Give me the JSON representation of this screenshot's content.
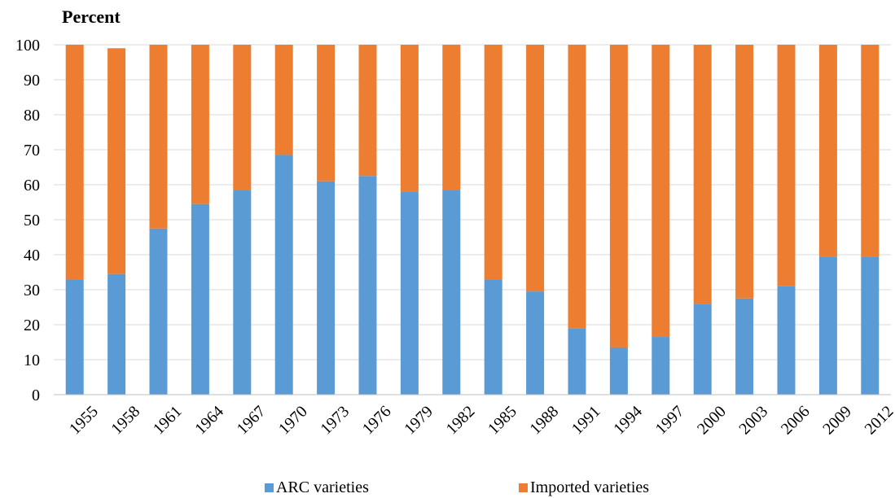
{
  "chart_data": {
    "type": "bar",
    "stacked": true,
    "ylabel": "Percent",
    "xlabel": "",
    "ylim": [
      0,
      100
    ],
    "yticks": [
      0,
      10,
      20,
      30,
      40,
      50,
      60,
      70,
      80,
      90,
      100
    ],
    "grid": true,
    "legend_position": "bottom",
    "categories": [
      "1955",
      "1958",
      "1961",
      "1964",
      "1967",
      "1970",
      "1973",
      "1976",
      "1979",
      "1982",
      "1985",
      "1988",
      "1991",
      "1994",
      "1997",
      "2000",
      "2003",
      "2006",
      "2009",
      "2012"
    ],
    "series": [
      {
        "name": "ARC varieties",
        "color": "#5B9BD5",
        "values": [
          33,
          34.5,
          47.5,
          54.5,
          58.5,
          68.5,
          61,
          62.5,
          58,
          58.5,
          33,
          29.5,
          19,
          13.5,
          16.5,
          26,
          27.5,
          31,
          39.5,
          39.5
        ]
      },
      {
        "name": "Imported varieties",
        "color": "#ED7D31",
        "values": [
          67,
          64.5,
          52.5,
          45.5,
          41.5,
          31.5,
          39,
          37.5,
          42,
          41.5,
          67,
          70.5,
          81,
          86.5,
          83.5,
          74,
          72.5,
          69,
          60.5,
          60.5
        ]
      }
    ]
  }
}
